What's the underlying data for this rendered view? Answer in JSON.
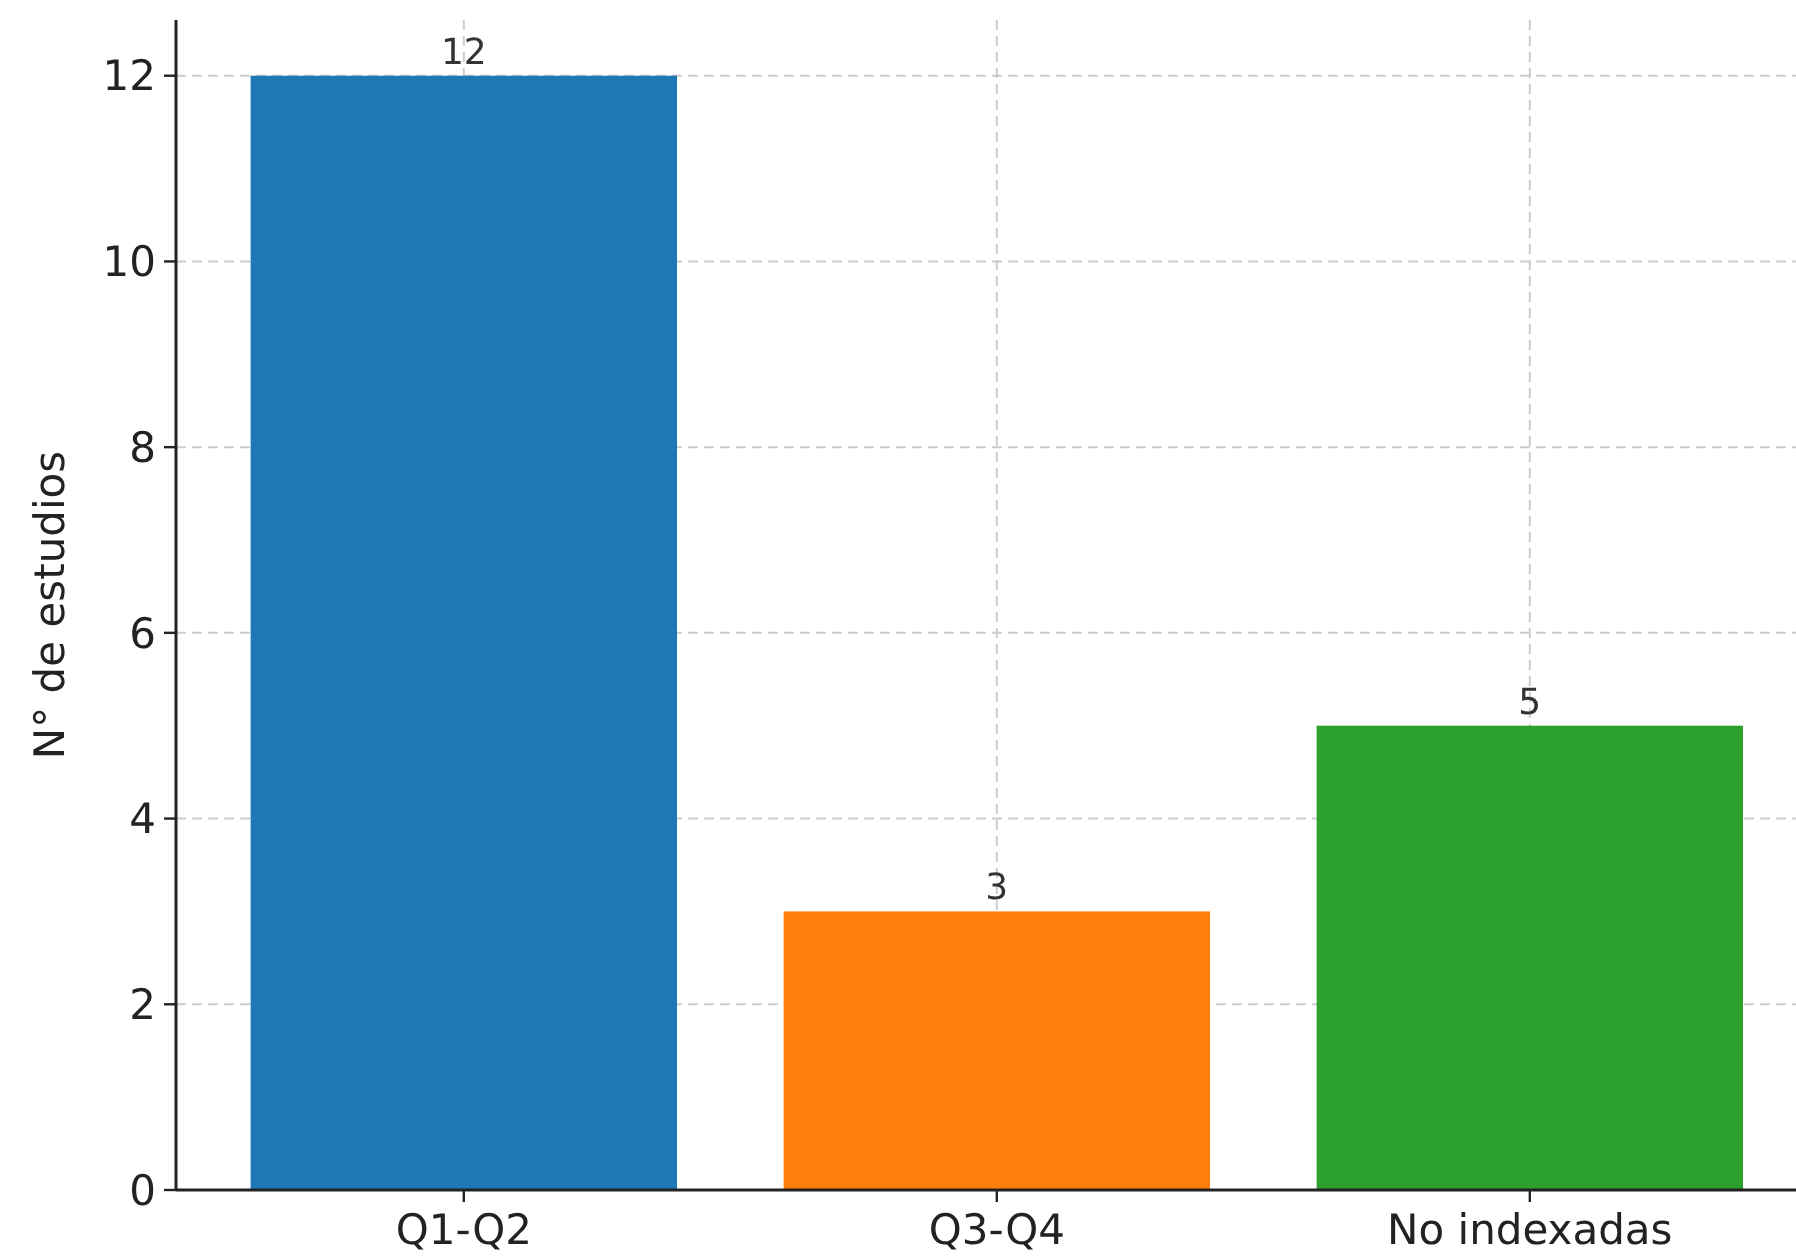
{
  "chart_data": {
    "type": "bar",
    "ylabel": "N° de estudios",
    "categories": [
      "Q1-Q2",
      "Q3-Q4",
      "No indexadas"
    ],
    "values": [
      12,
      3,
      5
    ],
    "colors": [
      "#1f77b4",
      "#ff7f0e",
      "#2ca02c"
    ],
    "ylim": [
      0,
      12.6
    ],
    "yticks": [
      0,
      2,
      4,
      6,
      8,
      10,
      12
    ],
    "grid": true,
    "data_labels": true
  }
}
